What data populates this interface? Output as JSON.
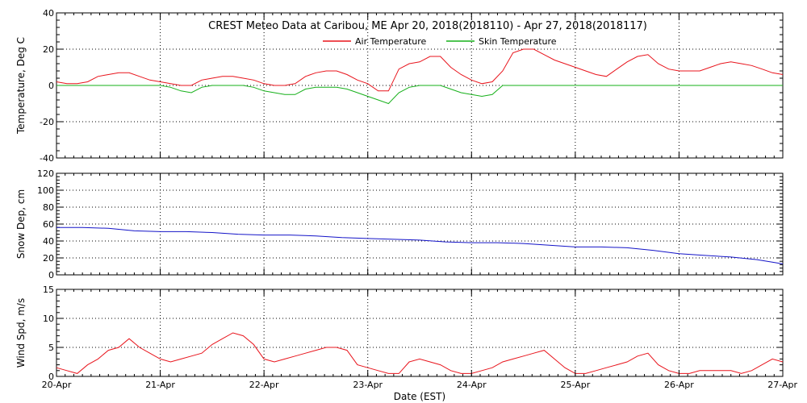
{
  "chart_data": {
    "type": "line",
    "title": "CREST Meteo Data at Caribou, ME   Apr 20, 2018(2018110) - Apr 27, 2018(2018117)",
    "xlabel": "Date (EST)",
    "x_tick_labels": [
      "20-Apr",
      "21-Apr",
      "22-Apr",
      "23-Apr",
      "24-Apr",
      "25-Apr",
      "26-Apr",
      "27-Apr"
    ],
    "xlim": [
      0,
      7
    ],
    "grid": true,
    "legend_position": "top-center",
    "panels": [
      {
        "ylabel": "Temperature, Deg C",
        "ylim": [
          -40,
          40
        ],
        "y_ticks": [
          -40,
          -20,
          0,
          20,
          40
        ],
        "series": [
          {
            "name": "Air Temperature",
            "color": "#e8141c",
            "x": [
              0.0,
              0.1,
              0.2,
              0.3,
              0.4,
              0.5,
              0.6,
              0.7,
              0.8,
              0.9,
              1.0,
              1.1,
              1.2,
              1.3,
              1.4,
              1.5,
              1.6,
              1.7,
              1.8,
              1.9,
              2.0,
              2.1,
              2.2,
              2.3,
              2.4,
              2.5,
              2.6,
              2.7,
              2.8,
              2.9,
              3.0,
              3.1,
              3.2,
              3.3,
              3.4,
              3.5,
              3.6,
              3.7,
              3.8,
              3.9,
              4.0,
              4.1,
              4.2,
              4.3,
              4.4,
              4.5,
              4.6,
              4.7,
              4.8,
              4.9,
              5.0,
              5.1,
              5.2,
              5.3,
              5.4,
              5.5,
              5.6,
              5.7,
              5.8,
              5.9,
              6.0,
              6.1,
              6.2,
              6.3,
              6.4,
              6.5,
              6.6,
              6.7,
              6.8,
              6.9,
              7.0
            ],
            "values": [
              2,
              1,
              1,
              2,
              5,
              6,
              7,
              7,
              5,
              3,
              2,
              1,
              0,
              0,
              3,
              4,
              5,
              5,
              4,
              3,
              1,
              0,
              0,
              1,
              5,
              7,
              8,
              8,
              6,
              3,
              1,
              -3,
              -3,
              9,
              12,
              13,
              16,
              16,
              10,
              6,
              3,
              1,
              2,
              8,
              18,
              20,
              20,
              17,
              14,
              12,
              10,
              8,
              6,
              5,
              9,
              13,
              16,
              17,
              12,
              9,
              8,
              8,
              8,
              10,
              12,
              13,
              12,
              11,
              9,
              7,
              6
            ]
          },
          {
            "name": "Skin Temperature",
            "color": "#16b01a",
            "x": [
              0.0,
              0.1,
              0.2,
              0.3,
              0.4,
              0.5,
              0.6,
              0.7,
              0.8,
              0.9,
              1.0,
              1.1,
              1.2,
              1.3,
              1.4,
              1.5,
              1.6,
              1.7,
              1.8,
              1.9,
              2.0,
              2.1,
              2.2,
              2.3,
              2.4,
              2.5,
              2.6,
              2.7,
              2.8,
              2.9,
              3.0,
              3.1,
              3.2,
              3.3,
              3.4,
              3.5,
              3.6,
              3.7,
              3.8,
              3.9,
              4.0,
              4.1,
              4.2,
              4.3,
              4.4,
              4.5,
              4.6,
              4.7,
              4.8,
              4.9,
              5.0,
              5.1,
              5.2,
              5.3,
              5.4,
              5.5,
              5.6,
              5.7,
              5.8,
              5.9,
              6.0,
              6.1,
              6.2,
              6.3,
              6.4,
              6.5,
              6.6,
              6.7,
              6.8,
              6.9,
              7.0
            ],
            "values": [
              0,
              0,
              0,
              0,
              0,
              0,
              0,
              0,
              0,
              0,
              0,
              -1,
              -3,
              -4,
              -1,
              0,
              0,
              0,
              0,
              -1,
              -3,
              -4,
              -5,
              -5,
              -2,
              -1,
              -1,
              -1,
              -2,
              -4,
              -6,
              -8,
              -10,
              -4,
              -1,
              0,
              0,
              0,
              -2,
              -4,
              -5,
              -6,
              -5,
              0,
              0,
              0,
              0,
              0,
              0,
              0,
              0,
              0,
              0,
              0,
              0,
              0,
              0,
              0,
              0,
              0,
              0,
              0,
              0,
              0,
              0,
              0,
              0,
              0,
              0,
              0,
              0
            ]
          }
        ]
      },
      {
        "ylabel": "Snow Dep, cm",
        "ylim": [
          0,
          120
        ],
        "y_ticks": [
          0,
          20,
          40,
          60,
          80,
          100,
          120
        ],
        "series": [
          {
            "name": "",
            "color": "#1414c8",
            "x": [
              0.0,
              0.25,
              0.5,
              0.75,
              1.0,
              1.25,
              1.5,
              1.75,
              2.0,
              2.25,
              2.5,
              2.75,
              3.0,
              3.25,
              3.5,
              3.75,
              4.0,
              4.25,
              4.5,
              4.75,
              5.0,
              5.25,
              5.5,
              5.75,
              6.0,
              6.25,
              6.5,
              6.75,
              7.0
            ],
            "values": [
              56,
              56,
              55,
              52,
              51,
              51,
              50,
              48,
              47,
              47,
              46,
              44,
              43,
              42,
              41,
              39,
              38,
              38,
              37,
              35,
              33,
              33,
              32,
              29,
              25,
              23,
              21,
              18,
              13
            ]
          }
        ]
      },
      {
        "ylabel": "Wind Spd, m/s",
        "ylim": [
          0,
          15
        ],
        "y_ticks": [
          0,
          5,
          10,
          15
        ],
        "series": [
          {
            "name": "",
            "color": "#e8141c",
            "x": [
              0.0,
              0.1,
              0.2,
              0.3,
              0.4,
              0.5,
              0.6,
              0.7,
              0.8,
              0.9,
              1.0,
              1.1,
              1.2,
              1.3,
              1.4,
              1.5,
              1.6,
              1.7,
              1.8,
              1.9,
              2.0,
              2.1,
              2.2,
              2.3,
              2.4,
              2.5,
              2.6,
              2.7,
              2.8,
              2.9,
              3.0,
              3.1,
              3.2,
              3.3,
              3.4,
              3.5,
              3.6,
              3.7,
              3.8,
              3.9,
              4.0,
              4.1,
              4.2,
              4.3,
              4.4,
              4.5,
              4.6,
              4.7,
              4.8,
              4.9,
              5.0,
              5.1,
              5.2,
              5.3,
              5.4,
              5.5,
              5.6,
              5.7,
              5.8,
              5.9,
              6.0,
              6.1,
              6.2,
              6.3,
              6.4,
              6.5,
              6.6,
              6.7,
              6.8,
              6.9,
              7.0
            ],
            "values": [
              1.5,
              1.0,
              0.5,
              2.0,
              3.0,
              4.5,
              5.0,
              6.5,
              5.0,
              4.0,
              3.0,
              2.5,
              3.0,
              3.5,
              4.0,
              5.5,
              6.5,
              7.5,
              7.0,
              5.5,
              3.0,
              2.5,
              3.0,
              3.5,
              4.0,
              4.5,
              5.0,
              5.0,
              4.5,
              2.0,
              1.5,
              1.0,
              0.5,
              0.5,
              2.5,
              3.0,
              2.5,
              2.0,
              1.0,
              0.5,
              0.5,
              1.0,
              1.5,
              2.5,
              3.0,
              3.5,
              4.0,
              4.5,
              3.0,
              1.5,
              0.5,
              0.5,
              1.0,
              1.5,
              2.0,
              2.5,
              3.5,
              4.0,
              2.0,
              1.0,
              0.5,
              0.5,
              1.0,
              1.0,
              1.0,
              1.0,
              0.5,
              1.0,
              2.0,
              3.0,
              2.5
            ]
          }
        ]
      }
    ]
  }
}
